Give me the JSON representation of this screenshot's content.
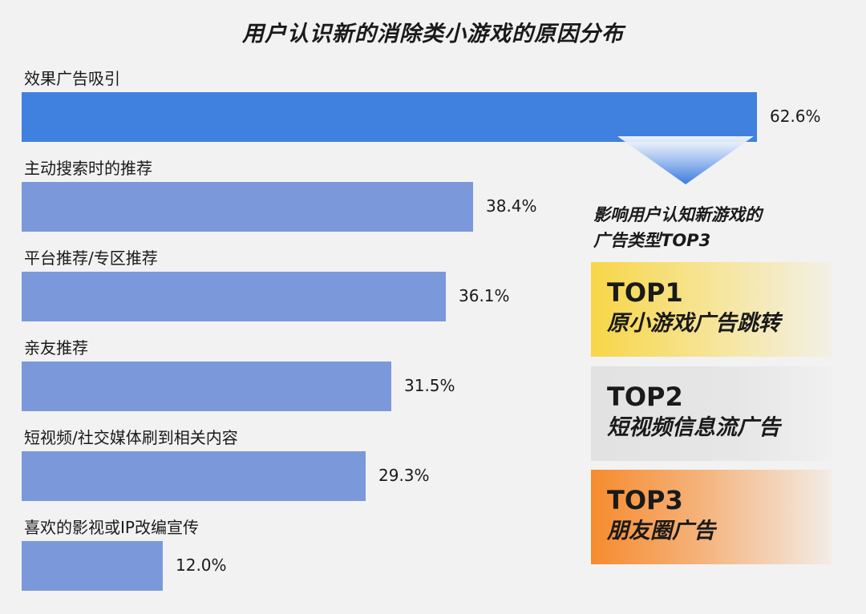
{
  "title": "用户认识新的消除类小游戏的原因分布",
  "chart_data": {
    "type": "bar",
    "orientation": "horizontal",
    "categories": [
      "效果广告吸引",
      "主动搜索时的推荐",
      "平台推荐/专区推荐",
      "亲友推荐",
      "短视频/社交媒体刷到相关内容",
      "喜欢的影视或IP改编宣传"
    ],
    "values": [
      62.6,
      38.4,
      36.1,
      31.5,
      29.3,
      12.0
    ],
    "value_labels": [
      "62.6%",
      "38.4%",
      "36.1%",
      "31.5%",
      "29.3%",
      "12.0%"
    ],
    "xlim": [
      0,
      62.6
    ],
    "highlight_index": 0,
    "colors": {
      "highlight": "#4080de",
      "normal": "#7b98db"
    },
    "grid": false
  },
  "side_panel": {
    "title_line1": "影响用户认知新游戏的",
    "title_line2": "广告类型TOP3",
    "arrow_color": "#3c7be0",
    "items": [
      {
        "rank": "TOP1",
        "label": "原小游戏广告跳转",
        "color": "#f7d647"
      },
      {
        "rank": "TOP2",
        "label": "短视频信息流广告",
        "color": "#e2e2e2"
      },
      {
        "rank": "TOP3",
        "label": "朋友圈广告",
        "color": "#f68b2e"
      }
    ]
  }
}
